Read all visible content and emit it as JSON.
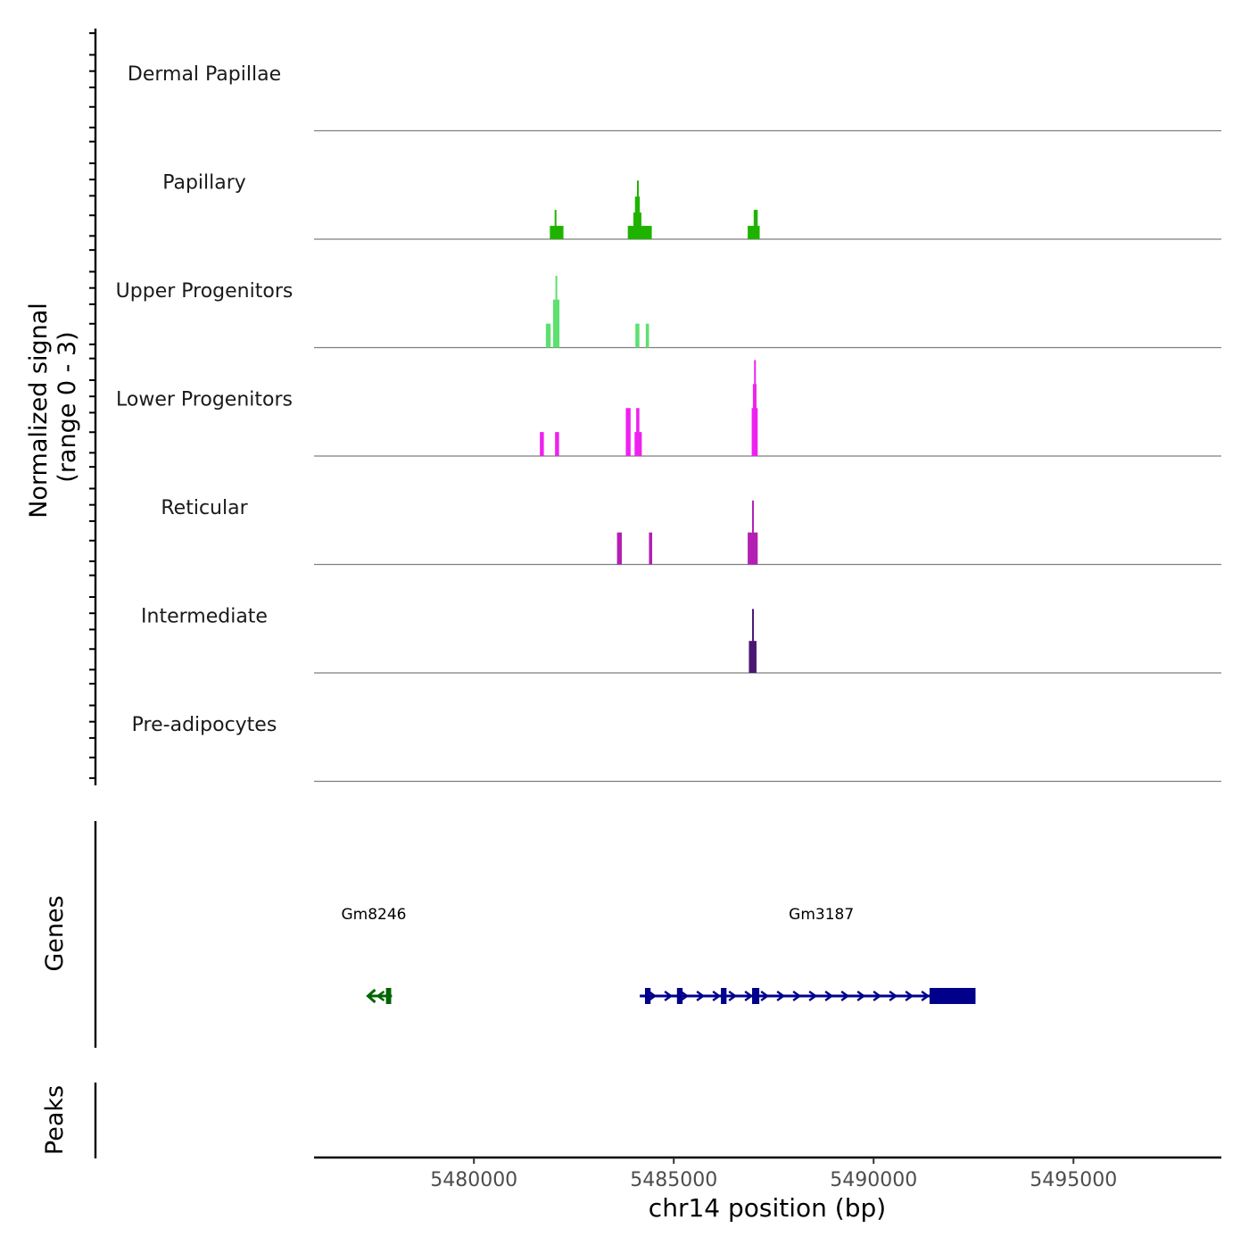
{
  "chart_data": {
    "type": "area",
    "chromosome": "chr14",
    "xlabel": "chr14 position (bp)",
    "xlim": [
      5476000,
      5498700
    ],
    "x_ticks": [
      5480000,
      5485000,
      5490000,
      5495000
    ],
    "x_tick_labels": [
      "5480000",
      "5485000",
      "5490000",
      "5495000"
    ],
    "coverage": {
      "ylabel": "Normalized signal",
      "ylabel_range": "(range 0 - 3)",
      "ylim": [
        0,
        3
      ],
      "tracks": [
        {
          "name": "Dermal Papillae",
          "color": "#9e9e9e",
          "peaks": []
        },
        {
          "name": "Papillary",
          "color": "#1fb300",
          "peaks": [
            {
              "start": 5481900,
              "end": 5482150,
              "v": 0.5
            },
            {
              "start": 5482020,
              "end": 5482060,
              "v": 1.1
            },
            {
              "start": 5482130,
              "end": 5482240,
              "v": 0.5
            },
            {
              "start": 5483850,
              "end": 5484350,
              "v": 0.5
            },
            {
              "start": 5483990,
              "end": 5484190,
              "v": 1.0
            },
            {
              "start": 5484030,
              "end": 5484150,
              "v": 1.6
            },
            {
              "start": 5484080,
              "end": 5484110,
              "v": 2.2
            },
            {
              "start": 5484320,
              "end": 5484450,
              "v": 0.5
            },
            {
              "start": 5486850,
              "end": 5487150,
              "v": 0.5
            },
            {
              "start": 5487000,
              "end": 5487100,
              "v": 1.1
            }
          ]
        },
        {
          "name": "Upper Progenitors",
          "color": "#5ee070",
          "peaks": [
            {
              "start": 5481800,
              "end": 5481920,
              "v": 0.9
            },
            {
              "start": 5481980,
              "end": 5482140,
              "v": 1.8
            },
            {
              "start": 5482040,
              "end": 5482080,
              "v": 2.7
            },
            {
              "start": 5484040,
              "end": 5484140,
              "v": 0.9
            },
            {
              "start": 5484300,
              "end": 5484380,
              "v": 0.9
            }
          ]
        },
        {
          "name": "Lower Progenitors",
          "color": "#ee22ee",
          "peaks": [
            {
              "start": 5481650,
              "end": 5481750,
              "v": 0.9
            },
            {
              "start": 5482030,
              "end": 5482130,
              "v": 0.9
            },
            {
              "start": 5483800,
              "end": 5483920,
              "v": 1.8
            },
            {
              "start": 5484020,
              "end": 5484200,
              "v": 0.9
            },
            {
              "start": 5484060,
              "end": 5484140,
              "v": 1.8
            },
            {
              "start": 5486950,
              "end": 5487100,
              "v": 1.8
            },
            {
              "start": 5486980,
              "end": 5487070,
              "v": 2.7
            },
            {
              "start": 5487010,
              "end": 5487040,
              "v": 3.6
            }
          ]
        },
        {
          "name": "Reticular",
          "color": "#b31fb3",
          "peaks": [
            {
              "start": 5483580,
              "end": 5483700,
              "v": 1.2
            },
            {
              "start": 5484380,
              "end": 5484460,
              "v": 1.2
            },
            {
              "start": 5486850,
              "end": 5487100,
              "v": 1.2
            },
            {
              "start": 5486960,
              "end": 5486990,
              "v": 2.4
            }
          ]
        },
        {
          "name": "Intermediate",
          "color": "#4a1873",
          "peaks": [
            {
              "start": 5486880,
              "end": 5487070,
              "v": 1.2
            },
            {
              "start": 5486960,
              "end": 5486990,
              "v": 2.4
            }
          ]
        },
        {
          "name": "Pre-adipocytes",
          "color": "#9e9e9e",
          "peaks": []
        }
      ]
    },
    "genes": {
      "label": "Genes",
      "items": [
        {
          "name": "Gm8246",
          "strand": "-",
          "color": "#006400",
          "start": 5477350,
          "end": 5477950,
          "exons": [
            {
              "start": 5477800,
              "end": 5477930
            }
          ]
        },
        {
          "name": "Gm3187",
          "strand": "+",
          "color": "#00008b",
          "start": 5484150,
          "end": 5492500,
          "exons": [
            {
              "start": 5484280,
              "end": 5484420
            },
            {
              "start": 5485080,
              "end": 5485220
            },
            {
              "start": 5486180,
              "end": 5486320
            },
            {
              "start": 5486960,
              "end": 5487140
            },
            {
              "start": 5491400,
              "end": 5492550
            }
          ]
        }
      ]
    },
    "peaks_track": {
      "label": "Peaks",
      "items": []
    }
  }
}
